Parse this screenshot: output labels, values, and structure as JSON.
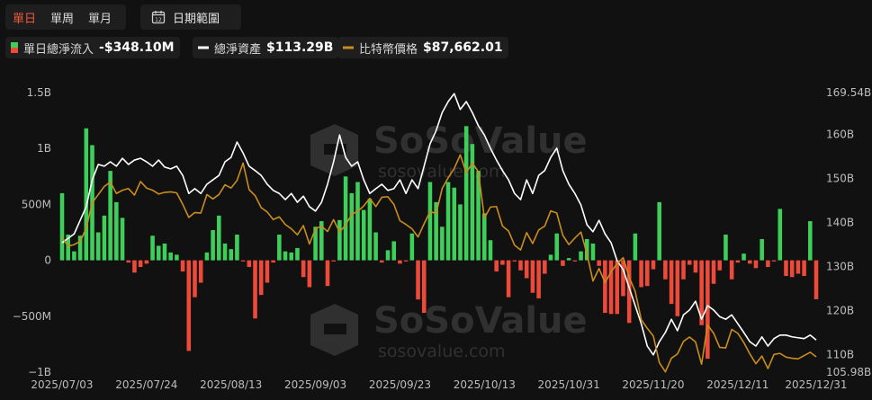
{
  "toolbar": {
    "tabs": [
      "單日",
      "單周",
      "單月"
    ],
    "date_range": "日期範圍"
  },
  "watermark": {
    "brand": "SoSoValue",
    "site": "sosovalue.com"
  },
  "chart_data": {
    "type": "bar",
    "categories": [
      "2025/07/03",
      null,
      null,
      null,
      null,
      null,
      null,
      null,
      null,
      null,
      null,
      null,
      null,
      null,
      "2025/07/24",
      null,
      null,
      null,
      null,
      null,
      null,
      null,
      null,
      null,
      null,
      null,
      null,
      null,
      "2025/08/13",
      null,
      null,
      null,
      null,
      null,
      null,
      null,
      null,
      null,
      null,
      null,
      null,
      null,
      "2025/09/03",
      null,
      null,
      null,
      null,
      null,
      null,
      null,
      null,
      null,
      null,
      null,
      null,
      null,
      "2025/09/23",
      null,
      null,
      null,
      null,
      null,
      null,
      null,
      null,
      null,
      null,
      null,
      null,
      null,
      "2025/10/13",
      null,
      null,
      null,
      null,
      null,
      null,
      null,
      null,
      null,
      null,
      null,
      null,
      null,
      "2025/10/31",
      null,
      null,
      null,
      null,
      null,
      null,
      null,
      null,
      null,
      null,
      null,
      null,
      null,
      "2025/11/20",
      null,
      null,
      null,
      null,
      null,
      null,
      null,
      null,
      null,
      null,
      null,
      null,
      null,
      "2025/12/11",
      null,
      null,
      null,
      null,
      null,
      null,
      null,
      null,
      null,
      null,
      null,
      null,
      "2025/12/31"
    ],
    "ylim": [
      -1000,
      1500
    ],
    "yticks": [
      {
        "value": -1000,
        "label": "−1B"
      },
      {
        "value": -500,
        "label": "−500M"
      },
      0,
      {
        "value": 500,
        "label": "500M"
      },
      {
        "value": 1000,
        "label": "1B"
      },
      {
        "value": 1500,
        "label": "1.5B"
      }
    ],
    "y2lim": [
      105.98,
      169.54
    ],
    "y2ticks": [
      {
        "value": 105.98,
        "label": "105.98B"
      },
      {
        "value": 110,
        "label": "110B"
      },
      {
        "value": 120,
        "label": "120B"
      },
      {
        "value": 130,
        "label": "130B"
      },
      {
        "value": 140,
        "label": "140B"
      },
      {
        "value": 150,
        "label": "150B"
      },
      {
        "value": 160,
        "label": "160B"
      },
      {
        "value": 169.54,
        "label": "169.54B"
      }
    ],
    "y3lim": [
      84850,
      136250
    ],
    "series": [
      {
        "name": "單日總淨流入",
        "legend_value": "-$348.10M",
        "type": "bar",
        "color": "#3ecf5a",
        "negative_color": "#ee4a3a",
        "values": [
          600,
          230,
          80,
          220,
          1180,
          1030,
          250,
          400,
          800,
          520,
          380,
          -20,
          -110,
          -60,
          -30,
          220,
          130,
          150,
          70,
          50,
          -100,
          -810,
          -330,
          -200,
          70,
          270,
          400,
          150,
          100,
          230,
          -10,
          -60,
          -520,
          -310,
          -200,
          -20,
          230,
          80,
          70,
          110,
          -150,
          -240,
          300,
          350,
          -230,
          -10,
          360,
          750,
          600,
          700,
          450,
          550,
          250,
          -20,
          90,
          170,
          -30,
          -10,
          240,
          -350,
          -470,
          700,
          520,
          300,
          700,
          650,
          500,
          1200,
          1040,
          800,
          420,
          180,
          -100,
          -40,
          -330,
          -10,
          -90,
          -160,
          -290,
          -340,
          -120,
          50,
          240,
          -50,
          20,
          -10,
          80,
          190,
          150,
          -50,
          -470,
          -480,
          -480,
          -320,
          -560,
          240,
          -240,
          -230,
          -80,
          520,
          -170,
          -390,
          -500,
          -170,
          -40,
          -110,
          -580,
          -880,
          -210,
          -90,
          230,
          -170,
          -20,
          60,
          -30,
          -70,
          190,
          -60,
          -10,
          460,
          -140,
          -150,
          -120,
          -140,
          350,
          -348.1
        ]
      },
      {
        "name": "總淨資產",
        "legend_value": "$113.29B",
        "type": "line",
        "axis": "y2",
        "color": "#ffffff",
        "values": [
          135.4,
          136.4,
          137.4,
          140.5,
          143.6,
          149.7,
          153.2,
          152.8,
          153.8,
          152.8,
          154.6,
          153.2,
          154.2,
          154.6,
          153.8,
          152.8,
          154.2,
          152.6,
          152.2,
          152.8,
          150.7,
          146.6,
          147.7,
          146.6,
          148.7,
          149.7,
          150.7,
          153.8,
          154.8,
          158.3,
          155.8,
          152.8,
          151.8,
          150.7,
          148.7,
          147.3,
          146.6,
          145.2,
          146.6,
          144.6,
          146.0,
          143.6,
          142.6,
          144.6,
          148.7,
          153.8,
          159.9,
          154.8,
          152.8,
          153.8,
          149.7,
          146.6,
          147.7,
          148.7,
          147.3,
          147.7,
          149.7,
          146.6,
          149.7,
          147.7,
          152.8,
          157.9,
          160.9,
          165.0,
          167.5,
          169.3,
          165.7,
          167.5,
          165.0,
          162.0,
          159.9,
          156.9,
          154.2,
          151.8,
          149.7,
          146.6,
          145.2,
          149.7,
          146.6,
          150.7,
          151.8,
          154.8,
          156.9,
          151.8,
          148.7,
          146.6,
          144.0,
          139.5,
          137.9,
          140.5,
          137.4,
          135.4,
          131.3,
          129.3,
          125.2,
          121.1,
          117.0,
          111.9,
          109.9,
          112.9,
          115.0,
          118.0,
          115.4,
          119.0,
          120.1,
          122.1,
          118.0,
          121.1,
          120.1,
          118.6,
          118.0,
          119.0,
          117.0,
          115.0,
          112.9,
          111.9,
          114.0,
          111.9,
          113.6,
          114.4,
          114.4,
          114.0,
          113.8,
          113.6,
          114.4,
          113.29
        ]
      },
      {
        "name": "比特幣價格",
        "legend_value": "$87,662.01",
        "type": "line",
        "axis": "y3",
        "color": "#c98d1c",
        "values": [
          109600,
          108000,
          108300,
          108900,
          111300,
          116000,
          117500,
          119000,
          119800,
          117700,
          118300,
          118600,
          117400,
          119900,
          118700,
          118300,
          117600,
          117900,
          118000,
          117800,
          115700,
          113300,
          114200,
          114100,
          117500,
          116700,
          117500,
          119300,
          118700,
          120100,
          123300,
          118400,
          117300,
          115100,
          114300,
          112900,
          113400,
          112000,
          111200,
          110100,
          111800,
          108400,
          111200,
          111700,
          110700,
          112900,
          110600,
          111900,
          113900,
          114400,
          115400,
          116800,
          115300,
          117000,
          117100,
          115700,
          112700,
          112000,
          111200,
          109700,
          112100,
          114400,
          114000,
          118600,
          120600,
          122300,
          124800,
          121500,
          123300,
          121700,
          113200,
          115200,
          115300,
          111700,
          110800,
          108200,
          107300,
          110500,
          108500,
          111000,
          111700,
          114500,
          114100,
          110000,
          108300,
          109500,
          110600,
          106600,
          101600,
          103900,
          101300,
          103300,
          104800,
          105900,
          102300,
          99700,
          94500,
          92900,
          91500,
          86600,
          84900,
          87400,
          88200,
          90500,
          91300,
          90400,
          86300,
          93500,
          92000,
          89400,
          89300,
          92700,
          92000,
          90300,
          88200,
          86400,
          87800,
          85500,
          88100,
          88300,
          87600,
          87400,
          87300,
          87900,
          88500,
          87662.01
        ]
      }
    ]
  }
}
